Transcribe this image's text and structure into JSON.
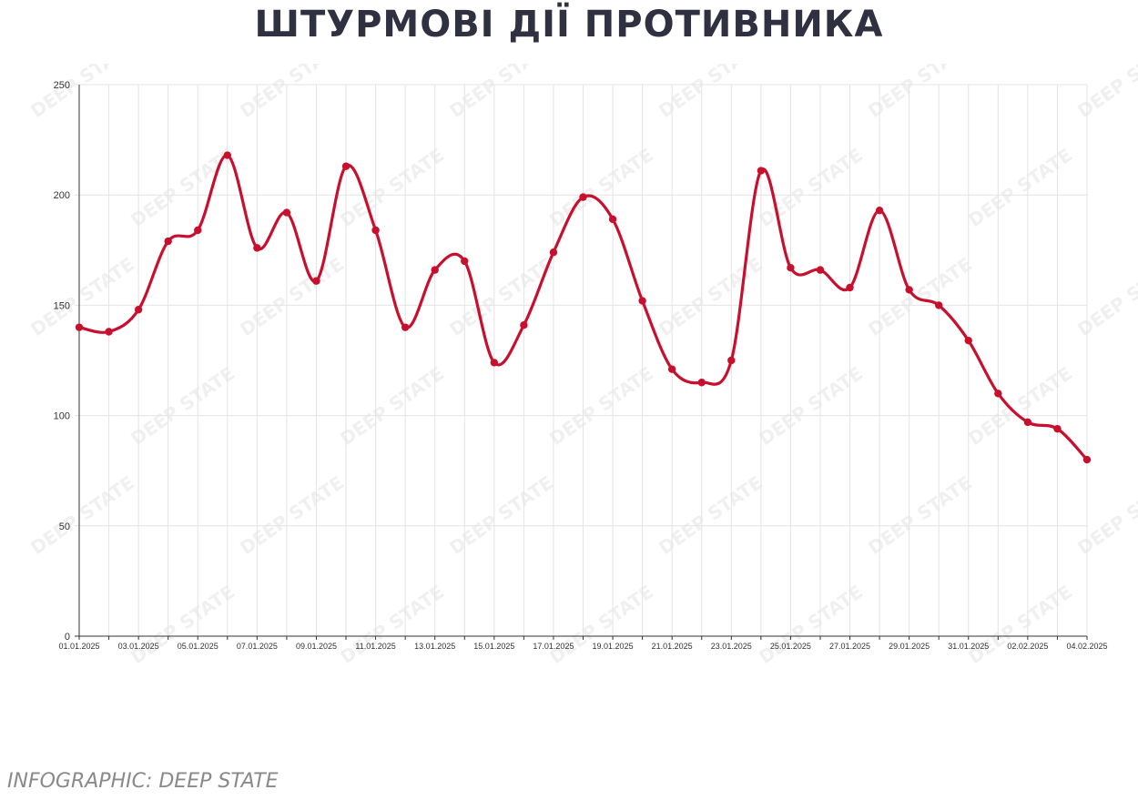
{
  "title": "ШТУРМОВІ ДІЇ ПРОТИВНИКА",
  "caption": "INFOGRAPHIC: DEEP STATE",
  "watermark": "DEEP STATE",
  "colors": {
    "line": "#c8102e",
    "grid": "#e4e4e4",
    "axis": "#333333",
    "title": "#2f3140"
  },
  "chart_data": {
    "type": "line",
    "title": "ШТУРМОВІ ДІЇ ПРОТИВНИКА",
    "xlabel": "",
    "ylabel": "",
    "ylim": [
      0,
      250
    ],
    "yticks": [
      0,
      50,
      100,
      150,
      200,
      250
    ],
    "grid": true,
    "legend": "none",
    "x": [
      "01.01.2025",
      "02.01.2025",
      "03.01.2025",
      "04.01.2025",
      "05.01.2025",
      "06.01.2025",
      "07.01.2025",
      "08.01.2025",
      "09.01.2025",
      "10.01.2025",
      "11.01.2025",
      "12.01.2025",
      "13.01.2025",
      "14.01.2025",
      "15.01.2025",
      "16.01.2025",
      "17.01.2025",
      "18.01.2025",
      "19.01.2025",
      "20.01.2025",
      "21.01.2025",
      "22.01.2025",
      "23.01.2025",
      "24.01.2025",
      "25.01.2025",
      "26.01.2025",
      "27.01.2025",
      "28.01.2025",
      "29.01.2025",
      "30.01.2025",
      "31.01.2025",
      "01.02.2025",
      "02.02.2025",
      "03.02.2025",
      "04.02.2025"
    ],
    "xtick_labels": [
      "01.01.2025",
      "03.01.2025",
      "05.01.2025",
      "07.01.2025",
      "09.01.2025",
      "11.01.2025",
      "13.01.2025",
      "15.01.2025",
      "17.01.2025",
      "19.01.2025",
      "21.01.2025",
      "23.01.2025",
      "25.01.2025",
      "27.01.2025",
      "29.01.2025",
      "31.01.2025",
      "02.02.2025",
      "04.02.2025"
    ],
    "series": [
      {
        "values": [
          140,
          138,
          148,
          179,
          184,
          218,
          176,
          192,
          161,
          213,
          184,
          140,
          166,
          170,
          124,
          141,
          174,
          199,
          189,
          152,
          121,
          115,
          125,
          211,
          167,
          166,
          158,
          193,
          157,
          150,
          134,
          110,
          97,
          94,
          80
        ]
      }
    ]
  }
}
